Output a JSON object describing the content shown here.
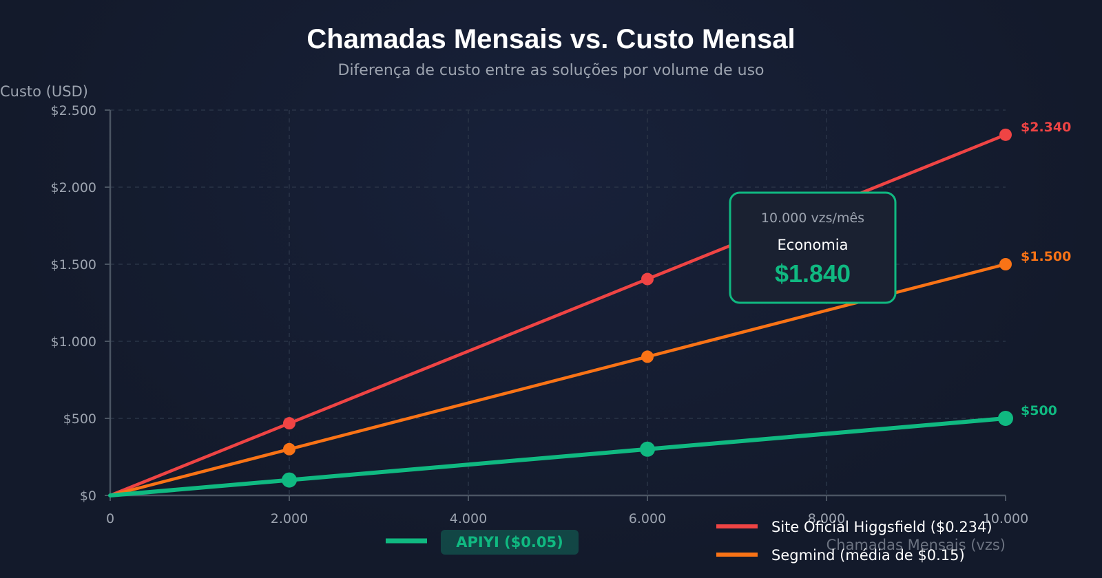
{
  "chart_data": {
    "type": "line",
    "title": "Chamadas Mensais vs. Custo Mensal",
    "subtitle": "Diferença de custo entre as soluções por volume de uso",
    "ylabel": "Custo (USD)",
    "xlabel": "Chamadas Mensais (vzs)",
    "xlim": [
      0,
      10000
    ],
    "ylim": [
      0,
      2500
    ],
    "x_ticks": [
      {
        "value": 0,
        "label": "0"
      },
      {
        "value": 2000,
        "label": "2.000"
      },
      {
        "value": 4000,
        "label": "4.000"
      },
      {
        "value": 6000,
        "label": "6.000"
      },
      {
        "value": 8000,
        "label": "8.000"
      },
      {
        "value": 10000,
        "label": "10.000"
      }
    ],
    "y_ticks": [
      {
        "value": 0,
        "label": "$0"
      },
      {
        "value": 500,
        "label": "$500"
      },
      {
        "value": 1000,
        "label": "$1.000"
      },
      {
        "value": 1500,
        "label": "$1.500"
      },
      {
        "value": 2000,
        "label": "$2.000"
      },
      {
        "value": 2500,
        "label": "$2.500"
      }
    ],
    "grid": true,
    "series": [
      {
        "id": "higgsfield",
        "name": "Site Oficial Higgsfield ($0.234)",
        "color": "#ef4444",
        "x": [
          0,
          2000,
          6000,
          10000
        ],
        "y": [
          0,
          468,
          1404,
          2340
        ],
        "end_label": "$2.340"
      },
      {
        "id": "segmind",
        "name": "Segmind (média de $0.15)",
        "color": "#f97316",
        "x": [
          0,
          2000,
          6000,
          10000
        ],
        "y": [
          0,
          300,
          900,
          1500
        ],
        "end_label": "$1.500"
      },
      {
        "id": "apiyi",
        "name": "APIYI ($0.05)",
        "color": "#10b981",
        "x": [
          0,
          2000,
          6000,
          10000
        ],
        "y": [
          0,
          100,
          300,
          500
        ],
        "end_label": "$500"
      }
    ],
    "annotation": {
      "header": "10.000 vzs/mês",
      "label": "Economia",
      "value": "$1.840",
      "border_color": "#10b981"
    },
    "colors": {
      "background": "#131a2b",
      "axis": "#4b5563",
      "grid": "#2a3447",
      "tick_text": "#9ca3af",
      "title_text": "#ffffff",
      "subtitle_text": "#9ca3af",
      "highlight_bg": "#134e4a"
    }
  }
}
